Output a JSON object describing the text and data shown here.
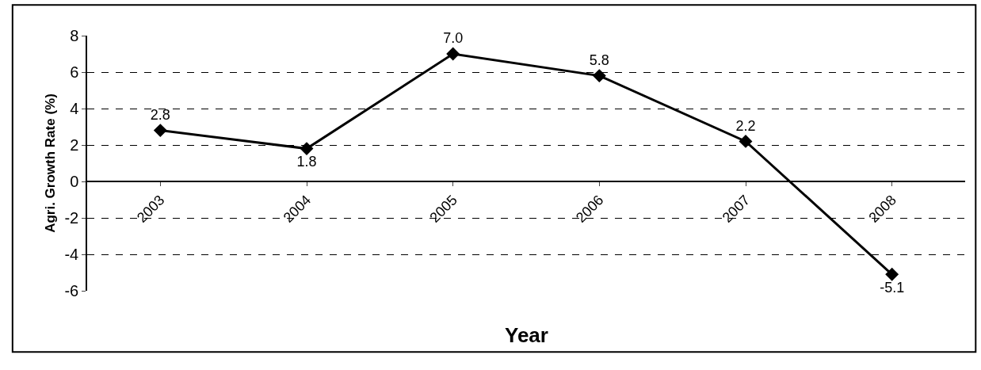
{
  "chart_data": {
    "type": "line",
    "xlabel": "Year",
    "ylabel": "Agri. Growth Rate (%)",
    "categories": [
      "2003",
      "2004",
      "2005",
      "2006",
      "2007",
      "2008"
    ],
    "series": [
      {
        "color": "#000000",
        "values": [
          2.8,
          1.8,
          7.0,
          5.8,
          2.2,
          -5.1
        ],
        "value_labels": [
          "2.8",
          "1.8",
          "7.0",
          "5.8",
          "2.2",
          "-5.1"
        ]
      }
    ],
    "ylim": [
      -6,
      8
    ],
    "yticks": [
      -6,
      -4,
      -2,
      0,
      2,
      4,
      6,
      8
    ],
    "grid": "y",
    "marker": "diamond",
    "line_style": "solid"
  }
}
